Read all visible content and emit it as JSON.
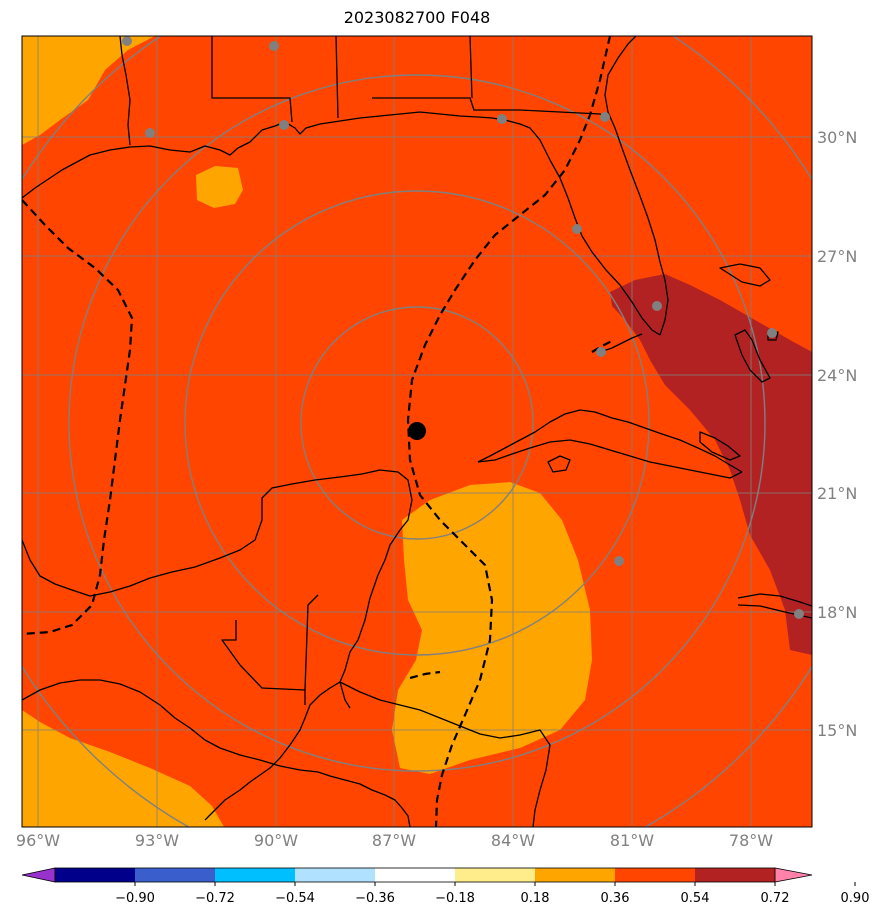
{
  "title": "2023082700 F048",
  "lat_labels": [
    "30°N",
    "27°N",
    "24°N",
    "21°N",
    "18°N",
    "15°N"
  ],
  "lon_labels": [
    "96°W",
    "93°W",
    "90°W",
    "87°W",
    "84°W",
    "81°W",
    "78°W"
  ],
  "colorbar": {
    "ticks": [
      "−0.90",
      "−0.72",
      "−0.54",
      "−0.36",
      "−0.18",
      "0.18",
      "0.36",
      "0.54",
      "0.72",
      "0.90"
    ],
    "colors": [
      "#9932cc",
      "#00008b",
      "#3a5fcd",
      "#00bfff",
      "#b0e2ff",
      "#ffffff",
      "#ffec8b",
      "#ffa500",
      "#ff4500",
      "#b22222",
      "#ff82ab"
    ]
  },
  "colors": {
    "field_main": "#ff4500",
    "field_moderate": "#ffa500",
    "field_high": "#b22222",
    "grid": "#808080",
    "coast": "#000000"
  },
  "storm_center_marker": "black-dot",
  "stations_marker": "gray-dot"
}
